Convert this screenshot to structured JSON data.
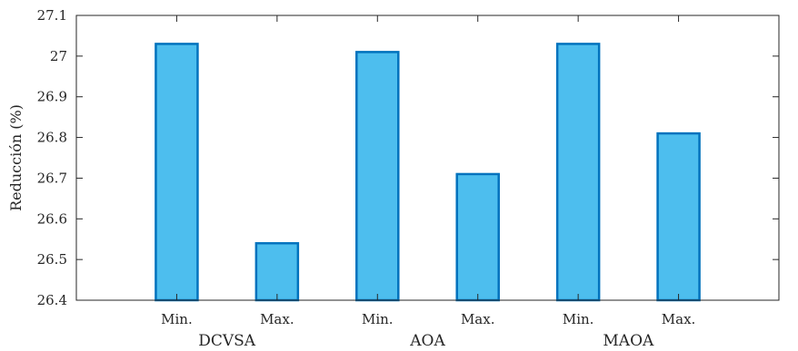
{
  "chart_data": {
    "type": "bar",
    "title": "",
    "xlabel": "",
    "ylabel": "Reducción (%)",
    "ylim": [
      26.4,
      27.1
    ],
    "yticks": [
      "26.4",
      "26.5",
      "26.6",
      "26.7",
      "26.8",
      "26.9",
      "27",
      "27.1"
    ],
    "categories": [
      "Min.",
      "Max.",
      "Min.",
      "Max.",
      "Min.",
      "Max."
    ],
    "groups": [
      {
        "label": "DCVSA",
        "categories": [
          0,
          1
        ]
      },
      {
        "label": "AOA",
        "categories": [
          2,
          3
        ]
      },
      {
        "label": "MAOA",
        "categories": [
          4,
          5
        ]
      }
    ],
    "values": [
      27.03,
      26.54,
      27.01,
      26.71,
      27.03,
      26.81
    ],
    "bar_color": "#4dbeee",
    "bar_edge_color": "#0072bd",
    "grid": false,
    "legend": "none"
  }
}
